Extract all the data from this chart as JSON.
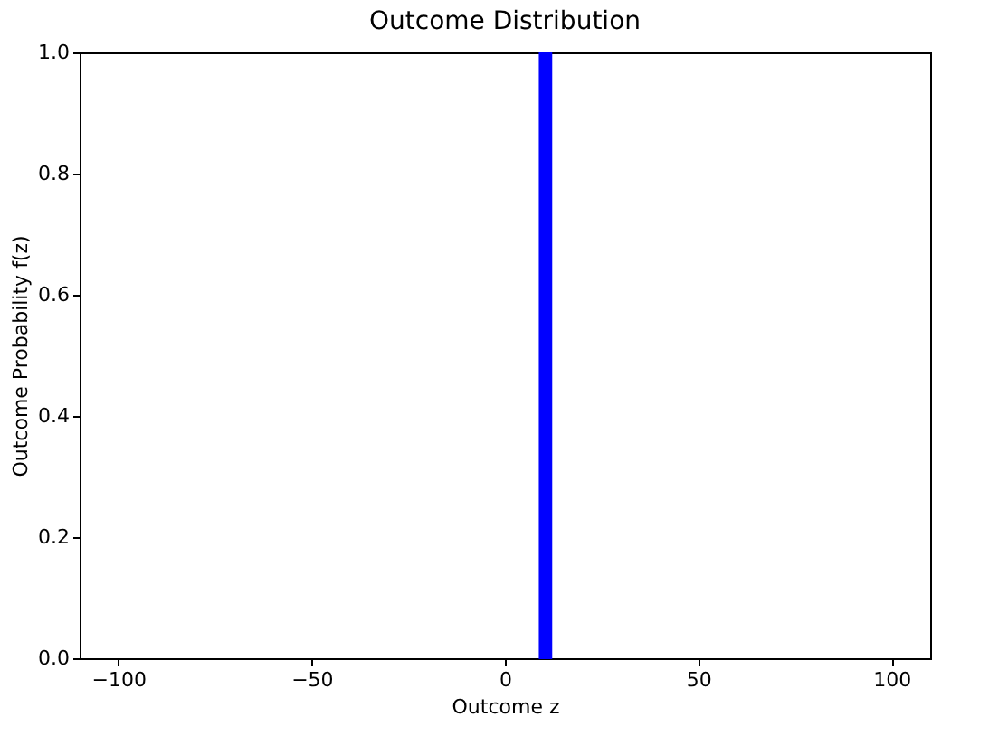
{
  "chart_data": {
    "type": "histogram",
    "title": "Outcome Distribution",
    "xlabel": "Outcome z",
    "ylabel": "Outcome Probability f(z)",
    "bins": [
      9,
      12
    ],
    "values": [
      1.0
    ],
    "color": "#0000ff",
    "xlim": [
      -110,
      110
    ],
    "xticks": [
      -100,
      -50,
      0,
      50,
      100
    ],
    "ylim": [
      0,
      1
    ],
    "yticks": [
      {
        "value": 0,
        "label": "0.0"
      },
      {
        "value": 0.2,
        "label": "0.2"
      },
      {
        "value": 0.4,
        "label": "0.4"
      },
      {
        "value": 0.6,
        "label": "0.6"
      },
      {
        "value": 0.8,
        "label": "0.8"
      },
      {
        "value": 1,
        "label": "1.0"
      }
    ],
    "grid": false
  }
}
